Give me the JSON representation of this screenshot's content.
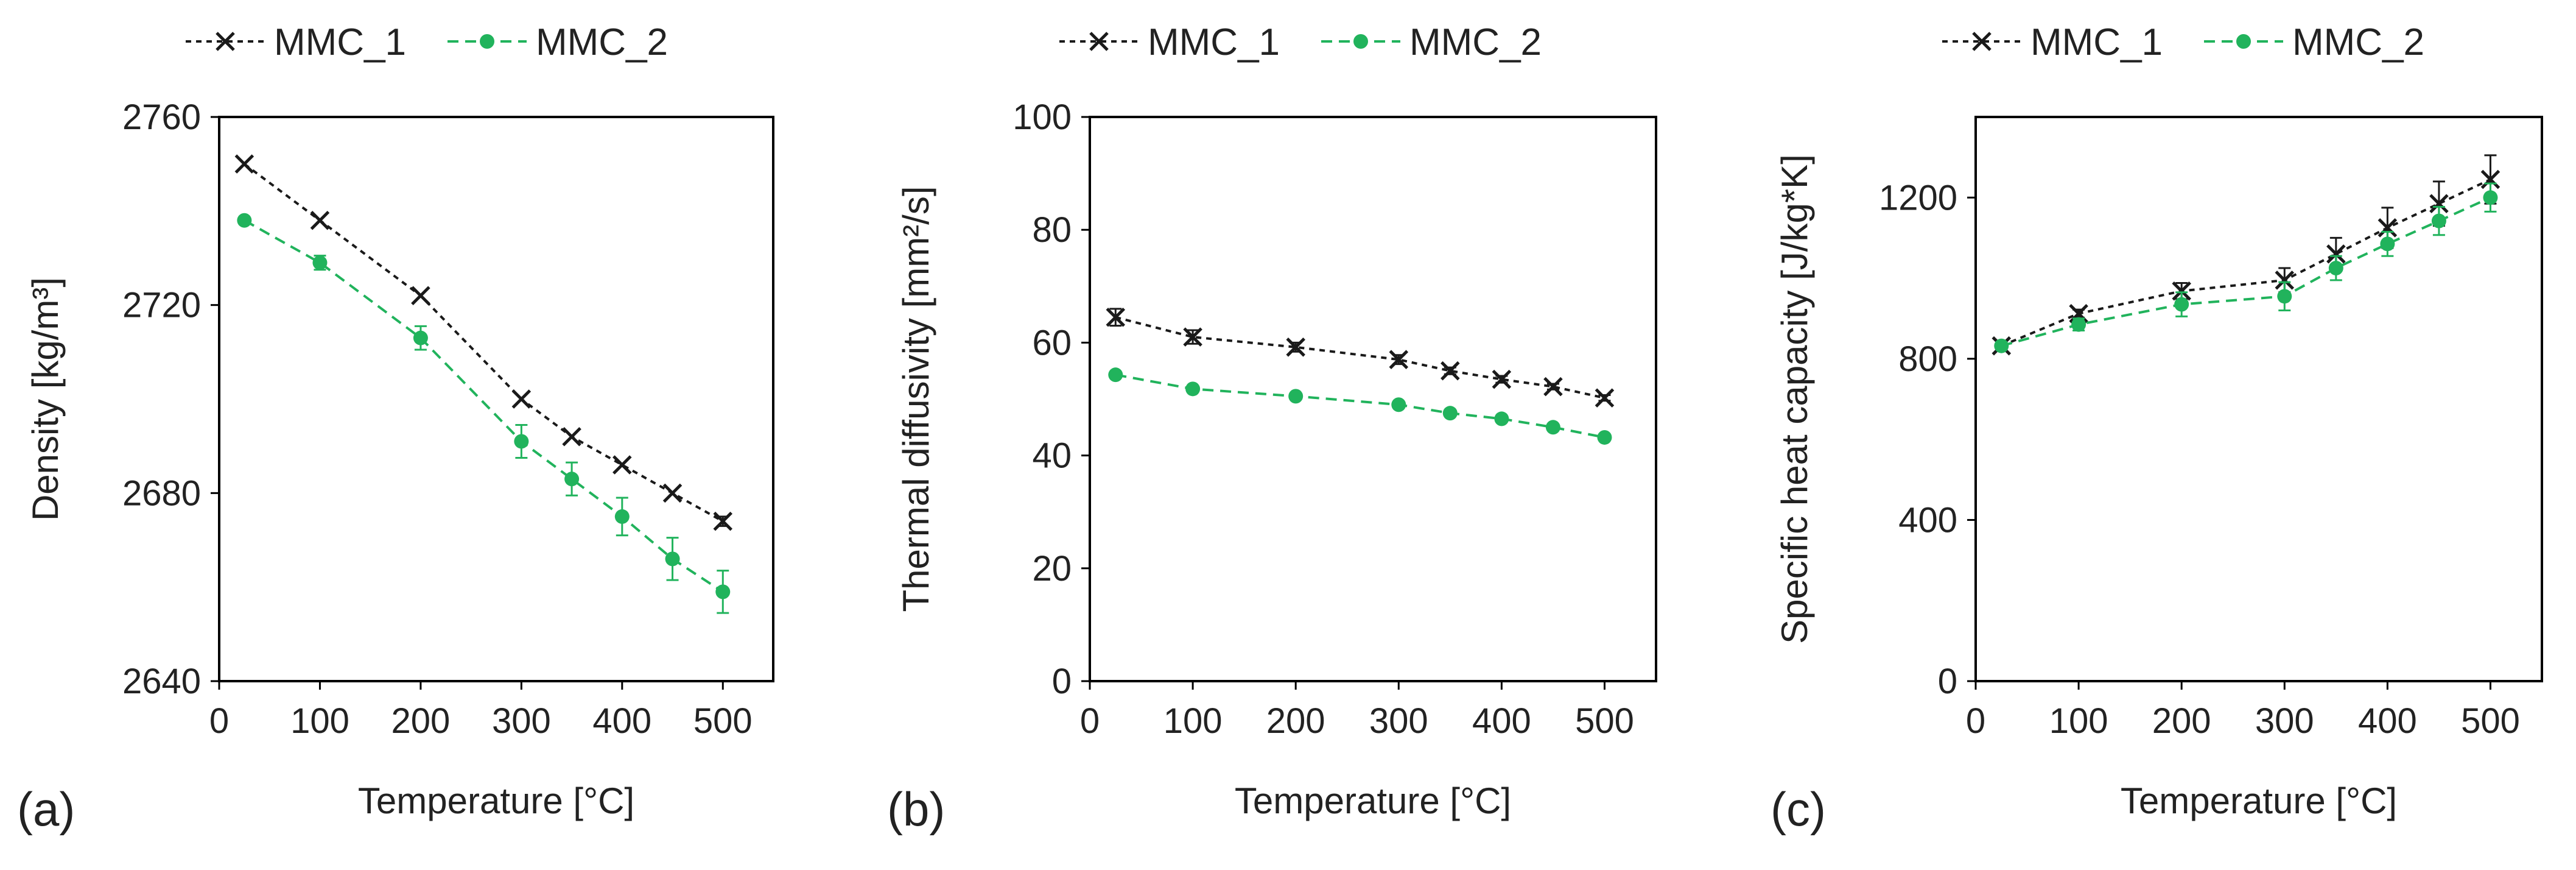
{
  "colors": {
    "mmc1": "#1a1a1a",
    "mmc2": "#21b35c",
    "axis": "#000000",
    "tick_text": "#333333"
  },
  "chart_data": [
    {
      "type": "line",
      "panel_label": "(a)",
      "xlabel": "Temperature [°C]",
      "ylabel": "Density [kg/m³]",
      "xlim": [
        0,
        550
      ],
      "ylim": [
        2640,
        2760
      ],
      "xticks": [
        0,
        100,
        200,
        300,
        400,
        500
      ],
      "yticks": [
        2640,
        2680,
        2720,
        2760
      ],
      "grid": false,
      "legend_position": "top",
      "series": [
        {
          "name": "MMC_1",
          "marker": "x",
          "x": [
            25,
            100,
            200,
            300,
            350,
            400,
            450,
            500
          ],
          "y": [
            2750,
            2738,
            2722,
            2700,
            2692,
            2686,
            2680,
            2674
          ],
          "err": [
            0,
            0,
            0,
            0,
            0,
            0,
            0,
            1
          ]
        },
        {
          "name": "MMC_2",
          "marker": "o",
          "x": [
            25,
            100,
            200,
            300,
            350,
            400,
            450,
            500
          ],
          "y": [
            2738,
            2729,
            2713,
            2691,
            2683,
            2675,
            2666,
            2659
          ],
          "err": [
            0,
            1.5,
            2.5,
            3.5,
            3.5,
            4,
            4.5,
            4.5
          ]
        }
      ]
    },
    {
      "type": "line",
      "panel_label": "(b)",
      "xlabel": "Temperature [°C]",
      "ylabel": "Thermal diffusivity [mm²/s]",
      "xlim": [
        0,
        550
      ],
      "ylim": [
        0,
        100
      ],
      "xticks": [
        0,
        100,
        200,
        300,
        400,
        500
      ],
      "yticks": [
        0,
        20,
        40,
        60,
        80,
        100
      ],
      "grid": false,
      "legend_position": "top",
      "series": [
        {
          "name": "MMC_1",
          "marker": "x",
          "x": [
            25,
            100,
            200,
            300,
            350,
            400,
            450,
            500
          ],
          "y": [
            64.5,
            61,
            59.2,
            57,
            55,
            53.5,
            52.2,
            50.2
          ],
          "err": [
            1.5,
            1.2,
            0.8,
            0.8,
            0.6,
            0.6,
            0.5,
            0.5
          ]
        },
        {
          "name": "MMC_2",
          "marker": "o",
          "x": [
            25,
            100,
            200,
            300,
            350,
            400,
            450,
            500
          ],
          "y": [
            54.3,
            51.8,
            50.5,
            49,
            47.5,
            46.5,
            45,
            43.2
          ],
          "err": [
            0,
            0,
            0,
            0,
            0,
            0,
            0,
            0
          ]
        }
      ]
    },
    {
      "type": "line",
      "panel_label": "(c)",
      "xlabel": "Temperature [°C]",
      "ylabel": "Specific heat capacity [J/kg*K]",
      "xlim": [
        0,
        550
      ],
      "ylim": [
        0,
        1400
      ],
      "xticks": [
        0,
        100,
        200,
        300,
        400,
        500
      ],
      "yticks": [
        0,
        400,
        800,
        1200
      ],
      "grid": false,
      "legend_position": "top",
      "series": [
        {
          "name": "MMC_1",
          "marker": "x",
          "x": [
            25,
            100,
            200,
            300,
            350,
            400,
            450,
            500
          ],
          "y": [
            832,
            912,
            968,
            995,
            1060,
            1125,
            1185,
            1245
          ],
          "err": [
            0,
            10,
            20,
            30,
            40,
            50,
            55,
            60
          ]
        },
        {
          "name": "MMC_2",
          "marker": "o",
          "x": [
            25,
            100,
            200,
            300,
            350,
            400,
            450,
            500
          ],
          "y": [
            832,
            885,
            935,
            955,
            1025,
            1085,
            1142,
            1200
          ],
          "err": [
            0,
            15,
            30,
            35,
            30,
            30,
            35,
            35
          ]
        }
      ]
    }
  ]
}
